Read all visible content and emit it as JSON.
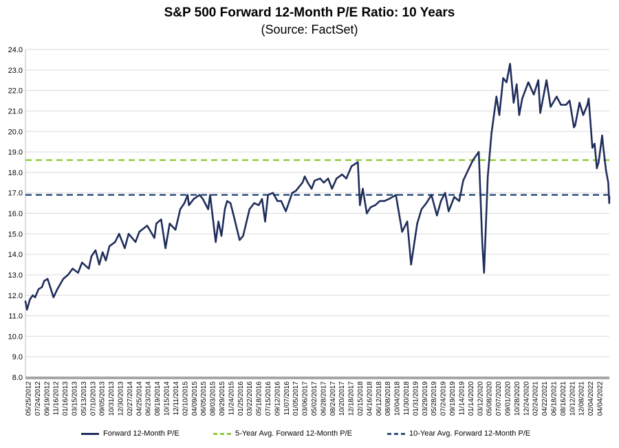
{
  "chart_data": {
    "type": "line",
    "title": "S&P 500 Forward 12-Month P/E Ratio: 10 Years",
    "subtitle": "(Source: FactSet)",
    "ylim": [
      8.0,
      24.0
    ],
    "y_ticks": [
      "24.0",
      "23.0",
      "22.0",
      "21.0",
      "20.0",
      "19.0",
      "18.0",
      "17.0",
      "16.0",
      "15.0",
      "14.0",
      "13.0",
      "12.0",
      "11.0",
      "10.0",
      "9.0",
      "8.0"
    ],
    "x_range": [
      "2012-05-25",
      "2022-05-13"
    ],
    "x_ticks": [
      "05/25/2012",
      "07/24/2012",
      "09/19/2012",
      "11/16/2012",
      "01/16/2013",
      "03/15/2013",
      "05/13/2013",
      "07/10/2013",
      "09/05/2013",
      "10/31/2013",
      "12/30/2013",
      "02/27/2014",
      "04/25/2014",
      "06/23/2014",
      "08/19/2014",
      "10/15/2014",
      "12/11/2014",
      "02/10/2015",
      "04/09/2015",
      "06/05/2015",
      "08/03/2015",
      "09/29/2015",
      "11/24/2015",
      "01/25/2016",
      "03/22/2016",
      "05/18/2016",
      "07/15/2016",
      "09/12/2016",
      "11/07/2016",
      "01/05/2017",
      "03/06/2017",
      "05/02/2017",
      "06/28/2017",
      "08/24/2017",
      "10/20/2017",
      "12/18/2017",
      "02/15/2018",
      "04/16/2018",
      "06/12/2018",
      "08/08/2018",
      "10/04/2018",
      "11/30/2018",
      "01/31/2019",
      "03/29/2019",
      "05/28/2019",
      "07/24/2019",
      "09/19/2019",
      "11/14/2019",
      "01/14/2020",
      "03/12/2020",
      "05/08/2020",
      "07/07/2020",
      "09/01/2020",
      "10/28/2020",
      "12/24/2020",
      "02/24/2021",
      "04/22/2021",
      "06/18/2021",
      "08/16/2021",
      "10/12/2021",
      "12/08/2021",
      "02/04/2022",
      "04/04/2022"
    ],
    "series": [
      {
        "name": "Forward 12-Month P/E",
        "color": "#1f2d5a",
        "style": "solid",
        "points": [
          [
            "2012-05-25",
            11.7
          ],
          [
            "2012-06-04",
            11.3
          ],
          [
            "2012-06-22",
            11.8
          ],
          [
            "2012-07-10",
            12.0
          ],
          [
            "2012-07-24",
            11.9
          ],
          [
            "2012-08-15",
            12.3
          ],
          [
            "2012-09-05",
            12.4
          ],
          [
            "2012-09-19",
            12.7
          ],
          [
            "2012-10-10",
            12.8
          ],
          [
            "2012-11-16",
            11.9
          ],
          [
            "2012-12-10",
            12.3
          ],
          [
            "2013-01-16",
            12.8
          ],
          [
            "2013-02-15",
            13.0
          ],
          [
            "2013-03-15",
            13.3
          ],
          [
            "2013-04-18",
            13.1
          ],
          [
            "2013-05-13",
            13.6
          ],
          [
            "2013-06-24",
            13.3
          ],
          [
            "2013-07-10",
            13.9
          ],
          [
            "2013-08-05",
            14.2
          ],
          [
            "2013-08-28",
            13.5
          ],
          [
            "2013-09-18",
            14.1
          ],
          [
            "2013-10-08",
            13.7
          ],
          [
            "2013-10-31",
            14.4
          ],
          [
            "2013-12-05",
            14.6
          ],
          [
            "2013-12-30",
            15.0
          ],
          [
            "2014-02-03",
            14.3
          ],
          [
            "2014-02-27",
            15.0
          ],
          [
            "2014-04-11",
            14.6
          ],
          [
            "2014-05-05",
            15.1
          ],
          [
            "2014-06-23",
            15.4
          ],
          [
            "2014-08-07",
            14.8
          ],
          [
            "2014-08-19",
            15.5
          ],
          [
            "2014-09-18",
            15.7
          ],
          [
            "2014-10-15",
            14.3
          ],
          [
            "2014-11-10",
            15.5
          ],
          [
            "2014-12-16",
            15.2
          ],
          [
            "2015-01-15",
            16.2
          ],
          [
            "2015-02-10",
            16.5
          ],
          [
            "2015-03-02",
            16.9
          ],
          [
            "2015-03-10",
            16.4
          ],
          [
            "2015-04-09",
            16.7
          ],
          [
            "2015-05-15",
            16.9
          ],
          [
            "2015-06-05",
            16.7
          ],
          [
            "2015-07-08",
            16.2
          ],
          [
            "2015-07-20",
            16.9
          ],
          [
            "2015-08-24",
            14.6
          ],
          [
            "2015-09-10",
            15.6
          ],
          [
            "2015-09-29",
            14.9
          ],
          [
            "2015-10-20",
            16.2
          ],
          [
            "2015-11-03",
            16.6
          ],
          [
            "2015-11-24",
            16.5
          ],
          [
            "2015-12-14",
            15.9
          ],
          [
            "2016-01-20",
            14.7
          ],
          [
            "2016-02-11",
            14.9
          ],
          [
            "2016-03-22",
            16.2
          ],
          [
            "2016-04-20",
            16.5
          ],
          [
            "2016-05-18",
            16.4
          ],
          [
            "2016-06-08",
            16.7
          ],
          [
            "2016-06-27",
            15.6
          ],
          [
            "2016-07-15",
            16.9
          ],
          [
            "2016-08-15",
            17.0
          ],
          [
            "2016-09-12",
            16.6
          ],
          [
            "2016-10-05",
            16.6
          ],
          [
            "2016-11-03",
            16.1
          ],
          [
            "2016-12-13",
            17.0
          ],
          [
            "2017-01-05",
            17.1
          ],
          [
            "2017-02-15",
            17.5
          ],
          [
            "2017-03-01",
            17.8
          ],
          [
            "2017-03-20",
            17.5
          ],
          [
            "2017-04-13",
            17.2
          ],
          [
            "2017-05-02",
            17.6
          ],
          [
            "2017-06-05",
            17.7
          ],
          [
            "2017-06-28",
            17.5
          ],
          [
            "2017-07-25",
            17.7
          ],
          [
            "2017-08-18",
            17.2
          ],
          [
            "2017-09-15",
            17.7
          ],
          [
            "2017-10-20",
            17.9
          ],
          [
            "2017-11-15",
            17.7
          ],
          [
            "2017-12-18",
            18.3
          ],
          [
            "2018-01-26",
            18.5
          ],
          [
            "2018-02-08",
            16.4
          ],
          [
            "2018-02-26",
            17.2
          ],
          [
            "2018-03-23",
            16.0
          ],
          [
            "2018-04-16",
            16.3
          ],
          [
            "2018-05-15",
            16.4
          ],
          [
            "2018-06-12",
            16.6
          ],
          [
            "2018-07-10",
            16.6
          ],
          [
            "2018-08-08",
            16.7
          ],
          [
            "2018-09-20",
            16.9
          ],
          [
            "2018-10-29",
            15.1
          ],
          [
            "2018-11-30",
            15.6
          ],
          [
            "2018-12-24",
            13.5
          ],
          [
            "2019-01-31",
            15.5
          ],
          [
            "2019-02-27",
            16.2
          ],
          [
            "2019-03-29",
            16.5
          ],
          [
            "2019-04-30",
            16.9
          ],
          [
            "2019-06-03",
            15.9
          ],
          [
            "2019-06-28",
            16.6
          ],
          [
            "2019-07-24",
            17.0
          ],
          [
            "2019-08-15",
            16.1
          ],
          [
            "2019-09-19",
            16.8
          ],
          [
            "2019-10-20",
            16.6
          ],
          [
            "2019-11-14",
            17.6
          ],
          [
            "2019-12-20",
            18.2
          ],
          [
            "2020-01-14",
            18.6
          ],
          [
            "2020-02-19",
            19.0
          ],
          [
            "2020-03-12",
            14.5
          ],
          [
            "2020-03-23",
            13.1
          ],
          [
            "2020-04-15",
            17.8
          ],
          [
            "2020-05-08",
            19.9
          ],
          [
            "2020-06-08",
            21.7
          ],
          [
            "2020-06-26",
            20.8
          ],
          [
            "2020-07-20",
            22.6
          ],
          [
            "2020-08-10",
            22.4
          ],
          [
            "2020-09-01",
            23.3
          ],
          [
            "2020-09-23",
            21.4
          ],
          [
            "2020-10-12",
            22.3
          ],
          [
            "2020-10-28",
            20.8
          ],
          [
            "2020-11-16",
            21.6
          ],
          [
            "2020-12-24",
            22.4
          ],
          [
            "2021-01-27",
            21.8
          ],
          [
            "2021-02-24",
            22.5
          ],
          [
            "2021-03-08",
            20.9
          ],
          [
            "2021-04-16",
            22.5
          ],
          [
            "2021-05-12",
            21.2
          ],
          [
            "2021-06-18",
            21.7
          ],
          [
            "2021-07-15",
            21.3
          ],
          [
            "2021-08-16",
            21.3
          ],
          [
            "2021-09-07",
            21.5
          ],
          [
            "2021-10-04",
            20.2
          ],
          [
            "2021-10-12",
            20.3
          ],
          [
            "2021-11-08",
            21.4
          ],
          [
            "2021-12-01",
            20.8
          ],
          [
            "2021-12-27",
            21.3
          ],
          [
            "2022-01-04",
            21.6
          ],
          [
            "2022-01-27",
            19.2
          ],
          [
            "2022-02-10",
            19.4
          ],
          [
            "2022-02-24",
            18.2
          ],
          [
            "2022-03-07",
            18.5
          ],
          [
            "2022-03-29",
            19.8
          ],
          [
            "2022-04-04",
            19.3
          ],
          [
            "2022-04-22",
            18.1
          ],
          [
            "2022-05-06",
            17.5
          ],
          [
            "2022-05-12",
            16.5
          ],
          [
            "2022-05-13",
            16.8
          ]
        ]
      },
      {
        "name": "5-Year Avg. Forward 12-Month P/E",
        "color": "#8fca3a",
        "style": "dashed",
        "value": 18.6
      },
      {
        "name": "10-Year Avg. Forward 12-Month P/E",
        "color": "#2e4f7c",
        "style": "dashed",
        "value": 16.9
      }
    ]
  }
}
